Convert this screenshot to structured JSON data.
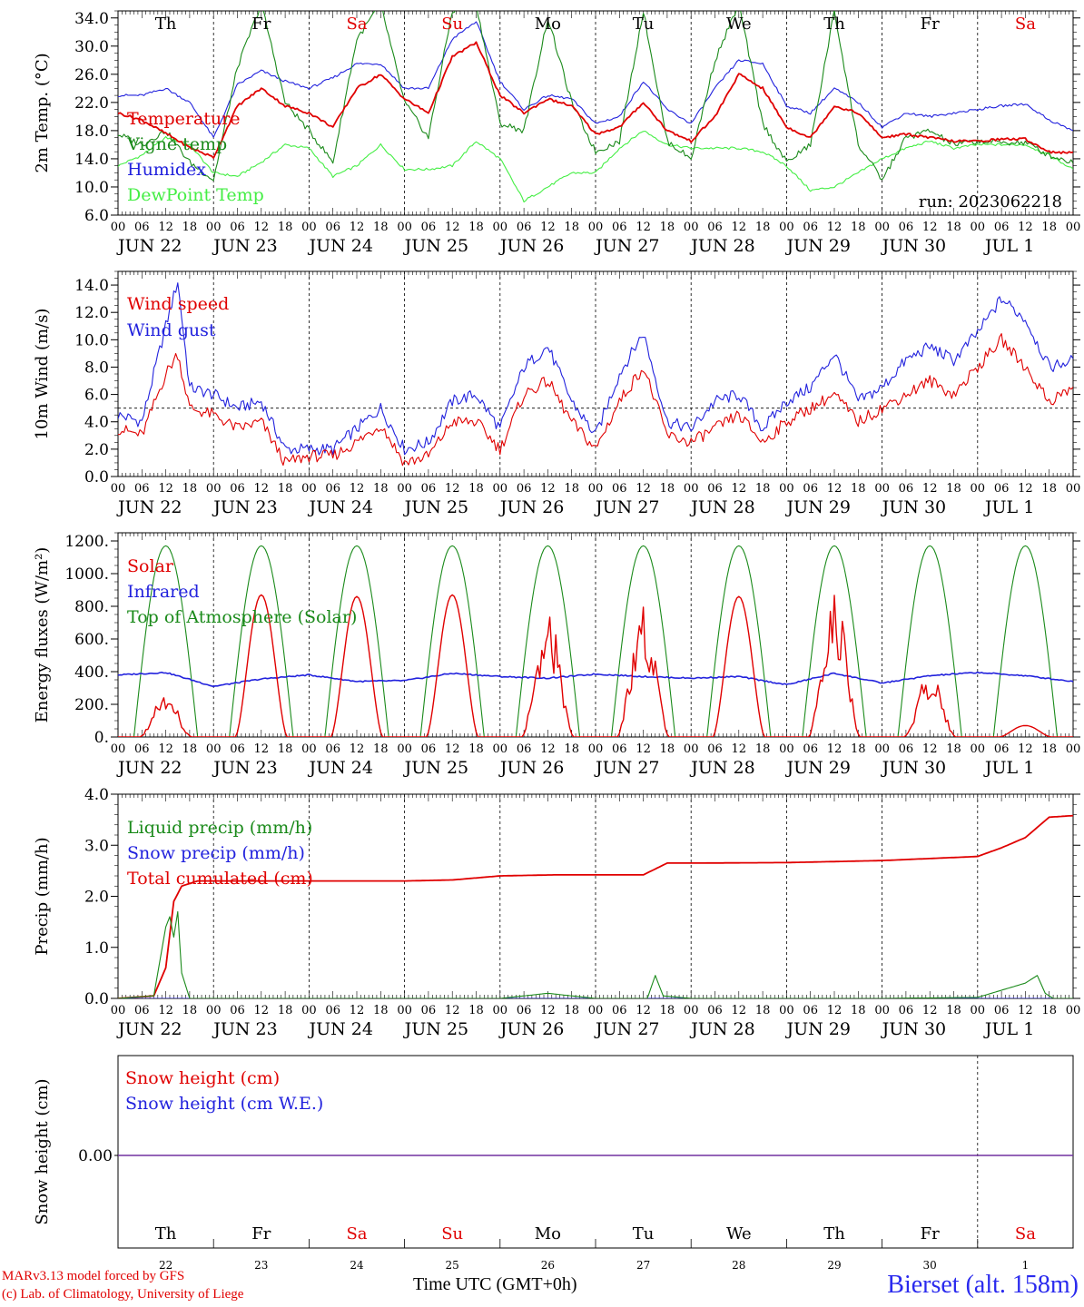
{
  "x_ticks": [
    "00",
    "06",
    "12",
    "18"
  ],
  "final_tick": "00",
  "dates": [
    "JUN 22",
    "JUN 23",
    "JUN 24",
    "JUN 25",
    "JUN 26",
    "JUN 27",
    "JUN 28",
    "JUN 29",
    "JUN 30",
    "JUL  1"
  ],
  "day_numbers": [
    "22",
    "23",
    "24",
    "25",
    "26",
    "27",
    "28",
    "29",
    "30",
    "1"
  ],
  "weekdays": [
    {
      "label": "Th",
      "color": "#000000"
    },
    {
      "label": "Fr",
      "color": "#000000"
    },
    {
      "label": "Sa",
      "color": "#e00000"
    },
    {
      "label": "Su",
      "color": "#e00000"
    },
    {
      "label": "Mo",
      "color": "#000000"
    },
    {
      "label": "Tu",
      "color": "#000000"
    },
    {
      "label": "We",
      "color": "#000000"
    },
    {
      "label": "Th",
      "color": "#000000"
    },
    {
      "label": "Fr",
      "color": "#000000"
    },
    {
      "label": "Sa",
      "color": "#e00000"
    }
  ],
  "run_label": "run: 2023062218",
  "x_axis_title": "Time UTC (GMT+0h)",
  "credit_line1": "MARv3.13 model forced by GFS",
  "credit_line2": "(c) Lab. of Climatology, University of Liege",
  "station": "Bierset (alt. 158m)",
  "chart_data": [
    {
      "type": "line",
      "ylabel": "2m Temp. (°C)",
      "ylim": [
        6,
        35
      ],
      "yticks": [
        6.0,
        10.0,
        14.0,
        18.0,
        22.0,
        26.0,
        30.0,
        34.0
      ],
      "ytick_labels": [
        "6.0",
        "10.0",
        "14.0",
        "18.0",
        "22.0",
        "26.0",
        "30.0",
        "34.0"
      ],
      "x_unit": "hours since JUN 22 00 UTC",
      "xlim": [
        0,
        240
      ],
      "series": [
        {
          "name": "Temperature",
          "color": "#e00000",
          "x": [
            0,
            6,
            12,
            18,
            24,
            30,
            36,
            42,
            48,
            54,
            60,
            66,
            72,
            78,
            84,
            90,
            96,
            102,
            108,
            114,
            120,
            126,
            132,
            138,
            144,
            150,
            156,
            162,
            168,
            174,
            180,
            186,
            192,
            198,
            204,
            210,
            216,
            222,
            228,
            234,
            240
          ],
          "values": [
            20.5,
            19.5,
            17.6,
            15.6,
            14.2,
            21.5,
            24.0,
            21.5,
            20.5,
            18.5,
            24.0,
            26.0,
            22.5,
            20.5,
            28.5,
            30.5,
            23.0,
            20.5,
            22.5,
            21.5,
            17.5,
            18.5,
            22.0,
            18.0,
            16.5,
            20.0,
            26.0,
            24.0,
            18.5,
            17.0,
            21.5,
            20.5,
            17.0,
            17.5,
            17.0,
            16.5,
            16.5,
            16.8,
            16.8,
            15.0,
            14.8
          ]
        },
        {
          "name": "Vigne temp",
          "color": "#1a8a1a",
          "x": [
            0,
            6,
            12,
            18,
            24,
            30,
            36,
            42,
            48,
            54,
            60,
            66,
            72,
            78,
            84,
            90,
            96,
            102,
            108,
            114,
            120,
            126,
            132,
            138,
            144,
            150,
            156,
            162,
            168,
            174,
            180,
            186,
            192,
            198,
            204,
            210,
            216,
            222,
            228,
            234,
            240
          ],
          "values": [
            17.5,
            16.0,
            18.0,
            13.5,
            11.0,
            27.0,
            36.0,
            22.0,
            18.0,
            13.5,
            31.0,
            36.0,
            22.0,
            17.0,
            35.0,
            36.0,
            19.0,
            18.0,
            34.0,
            22.0,
            15.0,
            16.5,
            35.0,
            16.5,
            14.0,
            28.0,
            36.0,
            19.0,
            13.5,
            16.0,
            35.0,
            16.0,
            11.0,
            17.0,
            18.0,
            16.0,
            16.5,
            16.3,
            16.3,
            14.5,
            13.5
          ]
        },
        {
          "name": "Humidex",
          "color": "#2222dd",
          "x": [
            0,
            6,
            12,
            18,
            24,
            30,
            36,
            42,
            48,
            54,
            60,
            66,
            72,
            78,
            84,
            90,
            96,
            102,
            108,
            114,
            120,
            126,
            132,
            138,
            144,
            150,
            156,
            162,
            168,
            174,
            180,
            186,
            192,
            198,
            204,
            210,
            216,
            222,
            228,
            234,
            240
          ],
          "values": [
            23.0,
            23.0,
            24.0,
            22.0,
            17.0,
            24.5,
            26.5,
            25.0,
            24.0,
            25.5,
            27.5,
            27.5,
            24.0,
            24.0,
            31.0,
            33.5,
            25.0,
            21.0,
            23.0,
            22.5,
            19.0,
            20.0,
            25.0,
            21.0,
            19.0,
            24.0,
            28.0,
            27.5,
            21.5,
            20.5,
            24.0,
            22.0,
            18.5,
            20.5,
            20.0,
            20.5,
            21.0,
            21.5,
            21.8,
            19.5,
            18.0
          ]
        },
        {
          "name": "DewPoint Temp",
          "color": "#44ee44",
          "x": [
            0,
            6,
            12,
            18,
            24,
            30,
            36,
            42,
            48,
            54,
            60,
            66,
            72,
            78,
            84,
            90,
            96,
            102,
            108,
            114,
            120,
            126,
            132,
            138,
            144,
            150,
            156,
            162,
            168,
            174,
            180,
            186,
            192,
            198,
            204,
            210,
            216,
            222,
            228,
            234,
            240
          ],
          "values": [
            13.0,
            14.5,
            17.0,
            16.0,
            12.0,
            11.5,
            13.5,
            16.0,
            15.5,
            11.5,
            13.0,
            16.0,
            12.5,
            12.5,
            13.0,
            16.5,
            14.0,
            8.0,
            10.0,
            12.0,
            12.0,
            15.5,
            18.0,
            16.0,
            15.5,
            15.5,
            15.5,
            15.0,
            13.0,
            9.5,
            10.0,
            12.0,
            14.0,
            15.5,
            16.5,
            15.5,
            16.0,
            16.0,
            16.0,
            14.5,
            12.5
          ]
        }
      ]
    },
    {
      "type": "line",
      "ylabel": "10m Wind (m/s)",
      "ylim": [
        0,
        15
      ],
      "yticks": [
        0.0,
        2.0,
        4.0,
        6.0,
        8.0,
        10.0,
        12.0,
        14.0
      ],
      "ytick_labels": [
        "0.0",
        "2.0",
        "4.0",
        "6.0",
        "8.0",
        "10.0",
        "12.0",
        "14.0"
      ],
      "reference_line": 5.0,
      "xlim": [
        0,
        240
      ],
      "series": [
        {
          "name": "Wind speed",
          "color": "#e00000",
          "x": [
            0,
            6,
            12,
            15,
            18,
            24,
            30,
            36,
            42,
            48,
            54,
            60,
            66,
            72,
            78,
            84,
            90,
            96,
            102,
            108,
            114,
            120,
            126,
            132,
            138,
            144,
            150,
            156,
            162,
            168,
            174,
            180,
            186,
            192,
            198,
            204,
            210,
            216,
            222,
            228,
            234,
            240
          ],
          "values": [
            3.5,
            3.0,
            7.5,
            9.0,
            5.0,
            4.5,
            3.5,
            4.0,
            1.0,
            1.5,
            1.5,
            2.5,
            3.8,
            1.0,
            1.5,
            4.0,
            4.0,
            2.0,
            6.0,
            7.0,
            4.0,
            2.0,
            5.5,
            8.0,
            3.0,
            2.5,
            3.5,
            4.5,
            2.5,
            4.0,
            5.0,
            6.0,
            4.0,
            5.0,
            6.0,
            7.0,
            6.0,
            8.0,
            10.0,
            8.0,
            5.5,
            6.5
          ]
        },
        {
          "name": "Wind gust",
          "color": "#2222dd",
          "x": [
            0,
            6,
            12,
            15,
            18,
            24,
            30,
            36,
            42,
            48,
            54,
            60,
            66,
            72,
            78,
            84,
            90,
            96,
            102,
            108,
            114,
            120,
            126,
            132,
            138,
            144,
            150,
            156,
            162,
            168,
            174,
            180,
            186,
            192,
            198,
            204,
            210,
            216,
            222,
            228,
            234,
            240
          ],
          "values": [
            4.5,
            4.0,
            11.0,
            14.3,
            6.5,
            6.0,
            5.0,
            5.5,
            2.0,
            2.0,
            2.0,
            3.5,
            5.0,
            2.0,
            2.5,
            5.5,
            6.0,
            3.5,
            8.0,
            9.5,
            5.5,
            3.0,
            7.5,
            10.5,
            4.0,
            3.5,
            5.5,
            6.0,
            3.5,
            5.5,
            6.5,
            9.0,
            5.5,
            6.5,
            8.5,
            9.5,
            8.5,
            10.5,
            13.0,
            11.5,
            8.0,
            8.5
          ]
        }
      ]
    },
    {
      "type": "line",
      "ylabel": "Energy fluxes (W/m²)",
      "ylim": [
        0,
        1250
      ],
      "yticks": [
        0,
        200,
        400,
        600,
        800,
        1000,
        1200
      ],
      "ytick_labels": [
        "0.",
        "200.",
        "400.",
        "600.",
        "800.",
        "1000.",
        "1200."
      ],
      "xlim": [
        0,
        240
      ],
      "toa_peak": 1170,
      "solar_daily_peaks": [
        260,
        870,
        860,
        870,
        780,
        800,
        860,
        870,
        390,
        70
      ],
      "series": [
        {
          "name": "Solar",
          "color": "#e00000"
        },
        {
          "name": "Infrared",
          "color": "#2222dd",
          "x": [
            0,
            12,
            24,
            36,
            48,
            60,
            72,
            84,
            96,
            108,
            120,
            132,
            144,
            156,
            168,
            180,
            192,
            204,
            216,
            228,
            240
          ],
          "values": [
            380,
            395,
            310,
            355,
            380,
            340,
            345,
            390,
            370,
            360,
            385,
            370,
            360,
            370,
            320,
            390,
            330,
            375,
            395,
            375,
            340
          ]
        },
        {
          "name": "Top of Atmosphere (Solar)",
          "color": "#1a8a1a"
        }
      ]
    },
    {
      "type": "line",
      "ylabel": "Precip (mm/h)",
      "ylim": [
        0,
        4
      ],
      "yticks": [
        0.0,
        1.0,
        2.0,
        3.0,
        4.0
      ],
      "ytick_labels": [
        "0.0",
        "1.0",
        "2.0",
        "3.0",
        "4.0"
      ],
      "xlim": [
        0,
        240
      ],
      "series": [
        {
          "name": "Liquid precip (mm/h)",
          "color": "#1a8a1a",
          "x": [
            0,
            9,
            12,
            13,
            14,
            15,
            16,
            18,
            24,
            48,
            96,
            108,
            120,
            133,
            135,
            137,
            144,
            192,
            216,
            228,
            231,
            233,
            235,
            240
          ],
          "values": [
            0,
            0.05,
            1.4,
            1.6,
            1.2,
            1.7,
            0.5,
            0,
            0,
            0,
            0,
            0.1,
            0,
            0,
            0.45,
            0.05,
            0,
            0,
            0.02,
            0.3,
            0.45,
            0.1,
            0,
            0
          ]
        },
        {
          "name": "Snow precip (mm/h)",
          "color": "#2222dd",
          "x": [
            0,
            240
          ],
          "values": [
            0,
            0
          ]
        },
        {
          "name": "Total cumulated (cm)",
          "color": "#e00000",
          "x": [
            0,
            9,
            12,
            14,
            16,
            20,
            24,
            48,
            72,
            84,
            96,
            110,
            120,
            132,
            138,
            144,
            168,
            192,
            216,
            222,
            228,
            234,
            240
          ],
          "values": [
            0,
            0.05,
            0.6,
            1.9,
            2.2,
            2.3,
            2.3,
            2.3,
            2.3,
            2.32,
            2.4,
            2.42,
            2.42,
            2.42,
            2.65,
            2.65,
            2.66,
            2.7,
            2.78,
            2.95,
            3.15,
            3.55,
            3.58
          ]
        }
      ]
    },
    {
      "type": "line",
      "ylabel": "Snow height (cm)",
      "yticks": [
        0.0
      ],
      "ytick_labels": [
        "0.00"
      ],
      "xlim": [
        0,
        240
      ],
      "series": [
        {
          "name": "Snow height (cm)",
          "color": "#e00000",
          "x": [
            0,
            240
          ],
          "values": [
            0,
            0
          ]
        },
        {
          "name": "Snow height (cm W.E.)",
          "color": "#2222dd",
          "x": [
            0,
            240
          ],
          "values": [
            0,
            0
          ]
        }
      ]
    }
  ]
}
